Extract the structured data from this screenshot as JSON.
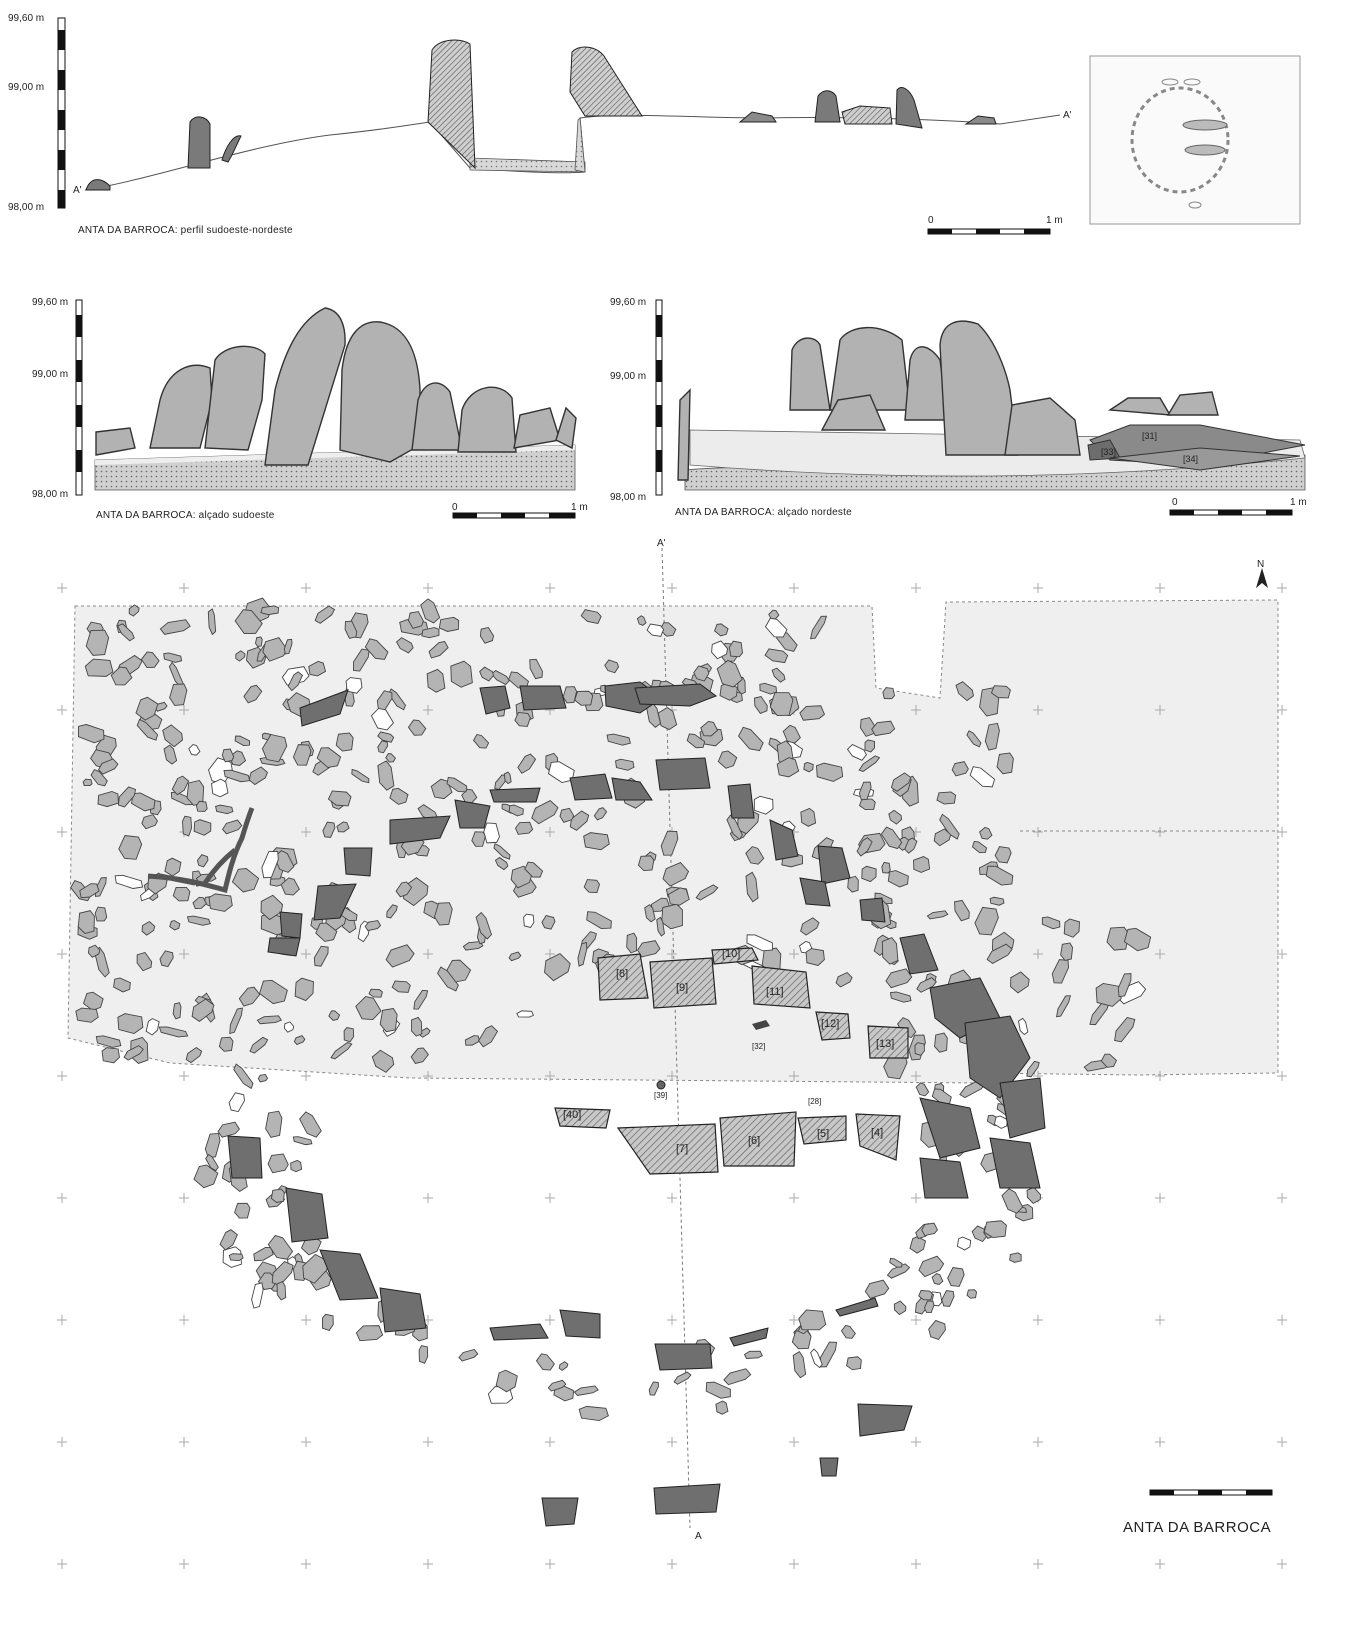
{
  "profile": {
    "levels": [
      "99,60 m",
      "99,00 m",
      "98,00 m"
    ],
    "endpoints": [
      "A'",
      "A'"
    ],
    "caption": "ANTA DA BARROCA: perfil sudoeste-nordeste",
    "scale": [
      "0",
      "1 m"
    ]
  },
  "elevation_sw": {
    "levels": [
      "99,60 m",
      "99,00 m",
      "98,00 m"
    ],
    "caption": "ANTA DA BARROCA: alçado sudoeste",
    "scale": [
      "0",
      "1 m"
    ]
  },
  "elevation_ne": {
    "levels": [
      "99,60 m",
      "99,00 m",
      "98,00 m"
    ],
    "caption": "ANTA DA BARROCA: alçado nordeste",
    "scale": [
      "0",
      "1 m"
    ],
    "units": [
      "[31]",
      "[33]",
      "[34]"
    ]
  },
  "plan": {
    "top_marker": "A'",
    "bottom_marker": "A",
    "north": "N",
    "title": "ANTA DA BARROCA",
    "stones": [
      "[8]",
      "[9]",
      "[10]",
      "[11]",
      "[12]",
      "[13]",
      "[40]",
      "[7]",
      "[6]",
      "[5]",
      "[4]"
    ],
    "small_labels": [
      "[32]",
      "[39]",
      "[28]"
    ]
  },
  "colors": {
    "stone_light": "#b4b4b4",
    "stone_dark": "#6e6e6e",
    "area_fill": "#efefef",
    "outline": "#333333"
  }
}
